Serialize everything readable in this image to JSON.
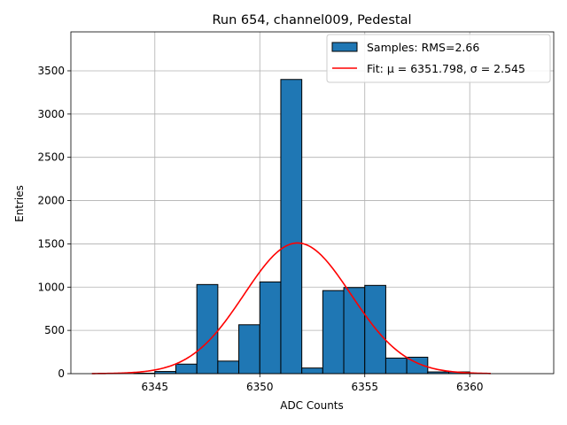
{
  "chart_data": {
    "type": "bar",
    "title": "Run 654, channel009, Pedestal",
    "xlabel": "ADC Counts",
    "ylabel": "Entries",
    "xlim": [
      6341.0,
      6364.0
    ],
    "ylim": [
      0,
      3950
    ],
    "xticks": [
      6345,
      6350,
      6355,
      6360
    ],
    "yticks": [
      0,
      500,
      1000,
      1500,
      2000,
      2500,
      3000,
      3500
    ],
    "grid": true,
    "legend_position": "top-right",
    "bin_width": 1,
    "bins": [
      {
        "left": 6344,
        "value": 5
      },
      {
        "left": 6345,
        "value": 25
      },
      {
        "left": 6346,
        "value": 110
      },
      {
        "left": 6347,
        "value": 1030
      },
      {
        "left": 6348,
        "value": 145
      },
      {
        "left": 6349,
        "value": 565
      },
      {
        "left": 6350,
        "value": 1060
      },
      {
        "left": 6351,
        "value": 3400
      },
      {
        "left": 6352,
        "value": 65
      },
      {
        "left": 6353,
        "value": 960
      },
      {
        "left": 6354,
        "value": 995
      },
      {
        "left": 6355,
        "value": 1020
      },
      {
        "left": 6356,
        "value": 180
      },
      {
        "left": 6357,
        "value": 190
      },
      {
        "left": 6358,
        "value": 20
      },
      {
        "left": 6359,
        "value": 20
      }
    ],
    "series": [
      {
        "name": "Samples: RMS=2.66",
        "kind": "histogram",
        "color": "#1f77b4"
      },
      {
        "name": "Fit: μ = 6351.798, σ = 2.545",
        "kind": "gaussian",
        "color": "#ff0000",
        "amplitude": 1510,
        "mu": 6351.798,
        "sigma": 2.545,
        "x_range": [
          6342,
          6361
        ]
      }
    ]
  }
}
